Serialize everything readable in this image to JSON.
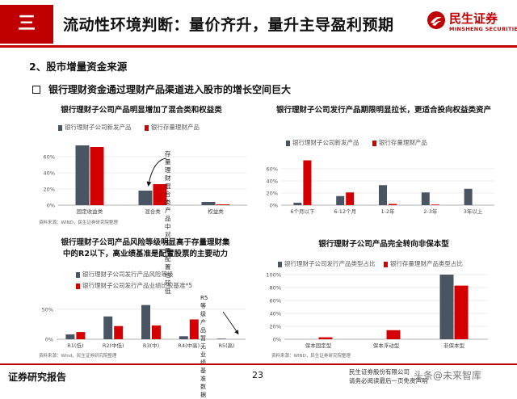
{
  "header": {
    "section": "三",
    "title": "流动性环境判断：量价齐升，量升主导盈利预期",
    "logo_cn": "民生证券",
    "logo_en": "MINSHENG SECURITIES",
    "colors": {
      "accent": "#c00000",
      "series_gray": "#4a5563",
      "series_red": "#d40000"
    }
  },
  "subhead": "2、股市增量资金来源",
  "bullet": "银行理财资金通过理财产品渠道进入股市的增长空间巨大",
  "charts": [
    {
      "title": "银行理财子公司产品明显增加了混合类和权益类",
      "legend": [
        "银行理财子公司新发产品",
        "银行存量理财产品"
      ],
      "source": "资料来源：WIND，民生证券研究院整理",
      "annotation": [
        "存量理财混合类",
        "产品中对股票配",
        "置也较低"
      ],
      "chart_data": {
        "type": "bar",
        "categories": [
          "固定收益类",
          "混合类",
          "权益类"
        ],
        "series": [
          {
            "name": "银行理财子公司新发产品",
            "values": [
              74,
              18,
              4
            ]
          },
          {
            "name": "银行存量理财产品",
            "values": [
              72,
              26,
              1
            ]
          }
        ],
        "yticks": [
          "0%",
          "20%",
          "40%",
          "60%"
        ],
        "ylim": [
          0,
          80
        ]
      }
    },
    {
      "title": "银行理财子公司发行产品期限明显拉长，更适合投向权益类资产",
      "legend": [
        "银行理财子公司新发产品",
        "银行存量理财产品"
      ],
      "source": "资料来源：WIND，民生证券研究院整理",
      "chart_data": {
        "type": "bar",
        "categories": [
          "6个月以下",
          "6-12个月",
          "1-2年",
          "2-3年",
          "3年以上"
        ],
        "series": [
          {
            "name": "银行理财子公司新发产品",
            "values": [
              4,
              15,
              33,
              21,
              27
            ]
          },
          {
            "name": "银行存量理财产品",
            "values": [
              74,
              21,
              2,
              1,
              0
            ]
          }
        ],
        "yticks": [
          "0%",
          "20%",
          "40%",
          "60%"
        ],
        "ylim": [
          0,
          80
        ]
      }
    },
    {
      "title": "银行理财子公司产品风险等级明显高于存量理财集中的R2以下，高业绩基准是配置股票的主要动力",
      "title_lines": [
        "银行理财子公司产品风险等级明显高于存量理财集",
        "中的R2以下，高业绩基准是配置股票的主要动力"
      ],
      "legend": [
        "银行理财子公司发行产品风险等级",
        "银行理财子公司发行产品业绩比较基准*5"
      ],
      "source": "资料来源：Wind，民生证券研究院整理",
      "annotation": [
        "R5等级产品暂无",
        "业绩基准数据"
      ],
      "chart_data": {
        "type": "bar",
        "categories": [
          "R1(低)",
          "R2(中低)",
          "R3(中)",
          "R4(中高)",
          "R5(高)"
        ],
        "series": [
          {
            "name": "银行理财子公司发行产品风险等级",
            "values": [
              8,
              38,
              57,
              5,
              1
            ]
          },
          {
            "name": "银行理财子公司发行产品业绩比较基准*5",
            "values": [
              12,
              22,
              23,
              33,
              0
            ]
          }
        ],
        "yticks": [
          "0%",
          "50%"
        ],
        "ylim": [
          0,
          70
        ]
      }
    },
    {
      "title": "银行理财子公司产品完全转向非保本型",
      "legend": [
        "银行理财子公司发行产品类型占比",
        "银行存量理财产品类型占比"
      ],
      "source": "资料来源：WIND，民生证券研究院整理",
      "chart_data": {
        "type": "bar",
        "categories": [
          "保本固定型",
          "保本浮动型",
          "非保本型"
        ],
        "series": [
          {
            "name": "银行理财子公司发行产品类型占比",
            "values": [
              0,
              0,
              100
            ]
          },
          {
            "name": "银行存量理财产品类型占比",
            "values": [
              3,
              14,
              83
            ]
          }
        ],
        "yticks": [
          "0%",
          "20%",
          "40%",
          "60%",
          "80%",
          "100%"
        ],
        "ylim": [
          0,
          100
        ]
      }
    }
  ],
  "footer": {
    "left": "证券研究报告",
    "page": "23",
    "right1": "民生证券股份有限公司",
    "right2": "请务必阅读最后一页免责声明",
    "watermark": "头条@未来智库"
  }
}
